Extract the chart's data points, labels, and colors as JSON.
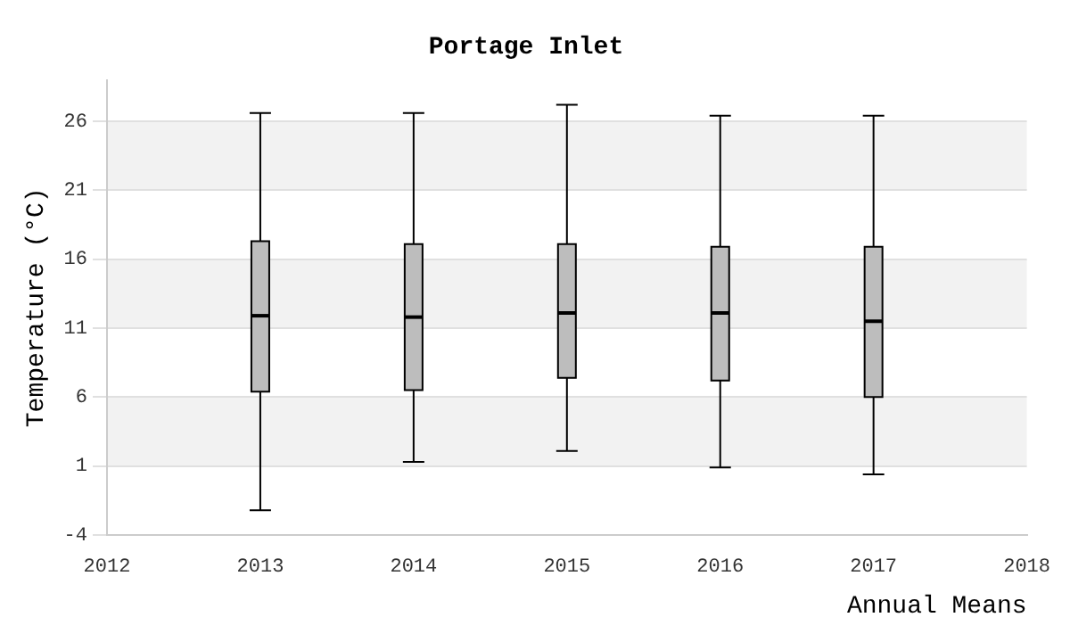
{
  "chart_data": {
    "type": "box",
    "title": "Portage Inlet",
    "xlabel": "Annual Means",
    "ylabel": "Temperature (°C)",
    "x": [
      2013,
      2014,
      2015,
      2016,
      2017
    ],
    "boxes": [
      {
        "low": -2.2,
        "q1": 6.4,
        "median": 11.9,
        "q3": 17.3,
        "high": 26.6
      },
      {
        "low": 1.3,
        "q1": 6.5,
        "median": 11.8,
        "q3": 17.1,
        "high": 26.6
      },
      {
        "low": 2.1,
        "q1": 7.4,
        "median": 12.1,
        "q3": 17.1,
        "high": 27.2
      },
      {
        "low": 0.9,
        "q1": 7.2,
        "median": 12.1,
        "q3": 16.9,
        "high": 26.4
      },
      {
        "low": 0.4,
        "q1": 6.0,
        "median": 11.5,
        "q3": 16.9,
        "high": 26.4
      }
    ],
    "color": "#bdbdbd",
    "xlim": [
      2012,
      2018
    ],
    "xticks": [
      2012,
      2013,
      2014,
      2015,
      2016,
      2017,
      2018
    ],
    "ylim": [
      -4,
      29
    ],
    "yticks": [
      -4,
      1,
      6,
      11,
      16,
      21,
      26
    ],
    "grid": "y",
    "legend": false
  }
}
